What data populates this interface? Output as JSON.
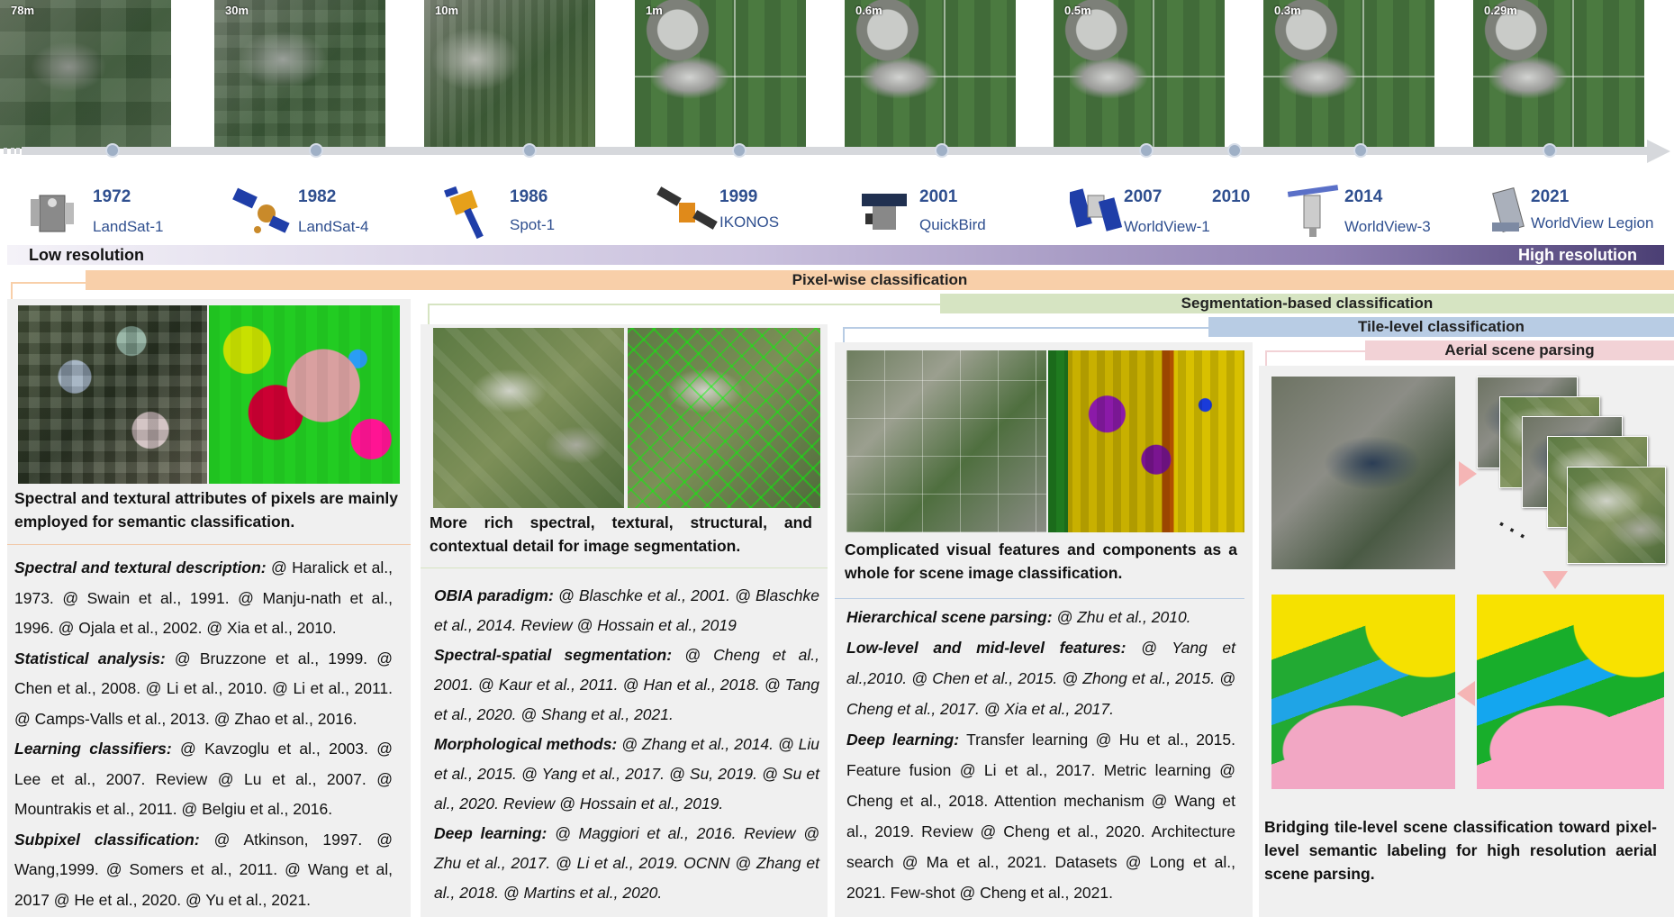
{
  "thumbnails": [
    "78m",
    "30m",
    "10m",
    "1m",
    "0.6m",
    "0.5m",
    "0.3m",
    "0.29m"
  ],
  "timeline": [
    {
      "year": "1972",
      "satellite": "LandSat-1"
    },
    {
      "year": "1982",
      "satellite": "LandSat-4"
    },
    {
      "year": "1986",
      "satellite": "Spot-1"
    },
    {
      "year": "1999",
      "satellite": "IKONOS"
    },
    {
      "year": "2001",
      "satellite": "QuickBird"
    },
    {
      "year": "2007",
      "satellite": "WorldView-1"
    },
    {
      "year": "2010",
      "satellite": ""
    },
    {
      "year": "2014",
      "satellite": "WorldView-3"
    },
    {
      "year": "2021",
      "satellite": "WorldView Legion"
    }
  ],
  "resolution": {
    "low": "Low resolution",
    "high": "High resolution"
  },
  "bands": {
    "pixel": "Pixel-wise classification",
    "segmentation": "Segmentation-based classification",
    "tile": "Tile-level classification",
    "scene": "Aerial scene parsing"
  },
  "colors": {
    "pixel": "#f8cfa9",
    "segmentation": "#d6e4c2",
    "tile": "#b8cce4",
    "scene": "#f2d2d6",
    "timeline": "#2f4f8f"
  },
  "panel1": {
    "caption": "Spectral and textural attributes of pixels are mainly employed for semantic classification.",
    "refs": [
      {
        "head": "Spectral and textural description:",
        "text": " @ Haralick et al., 1973. @ Swain et al., 1991. @ Manju-nath et al., 1996. @ Ojala et al., 2002. @ Xia et al., 2010."
      },
      {
        "head": "Statistical analysis:",
        "text": " @ Bruzzone et al., 1999. @ Chen et al., 2008. @ Li et al., 2010. @ Li et al., 2011. @ Camps-Valls et al., 2013. @ Zhao et al., 2016."
      },
      {
        "head": "Learning classifiers:",
        "text": " @ Kavzoglu et al., 2003. @ Lee et al., 2007. Review @ Lu et al., 2007. @ Mountrakis et al., 2011. @ Belgiu et al., 2016."
      },
      {
        "head": "Subpixel classification:",
        "text": " @ Atkinson, 1997. @ Wang,1999. @ Somers et al., 2011. @ Wang et al, 2017 @ He et al., 2020. @ Yu et al., 2021."
      }
    ]
  },
  "panel2": {
    "caption": "More rich spectral, textural, structural, and contextual detail for image segmentation.",
    "refs": [
      {
        "head": "OBIA paradigm:",
        "text": " @ Blaschke et al., 2001. @ Blaschke et al., 2014.  Review @ Hossain et al., 2019"
      },
      {
        "head": "Spectral-spatial segmentation:",
        "text": " @ Cheng et al., 2001. @ Kaur et al., 2011. @ Han et al., 2018. @ Tang et al., 2020. @ Shang et al., 2021."
      },
      {
        "head": "Morphological methods:",
        "text": " @ Zhang et al., 2014. @ Liu et al., 2015. @ Yang et al., 2017. @ Su, 2019. @ Su et al., 2020. Review @ Hossain et al., 2019."
      },
      {
        "head": "Deep learning:",
        "text": " @ Maggiori et al., 2016. Review @ Zhu et al., 2017. @ Li et al., 2019. OCNN @ Zhang et al., 2018. @ Martins et al., 2020."
      }
    ]
  },
  "panel3": {
    "caption": "Complicated visual features and components as a whole for scene image classification.",
    "refs": [
      {
        "head": "Hierarchical scene parsing:",
        "text": " @ Zhu et al., 2010."
      },
      {
        "head": "Low-level and mid-level features:",
        "text": " @ Yang et al.,2010. @ Chen et al., 2015. @ Zhong et al., 2015. @ Cheng et al., 2017. @ Xia et al., 2017."
      },
      {
        "head": "Deep learning:",
        "text": " Transfer learning @ Hu et al., 2015. Feature fusion @ Li et al., 2017. Metric learning @ Cheng et al., 2018. Attention mechanism @ Wang et al., 2019. Review @ Cheng et al., 2020. Architecture search @ Ma et al., 2021. Datasets @ Long et al., 2021. Few-shot @ Cheng et al., 2021."
      }
    ]
  },
  "panel4": {
    "caption": "Bridging tile-level scene classification toward pixel-level semantic labeling for high resolution aerial scene parsing.",
    "ellipsis": ". . ."
  }
}
